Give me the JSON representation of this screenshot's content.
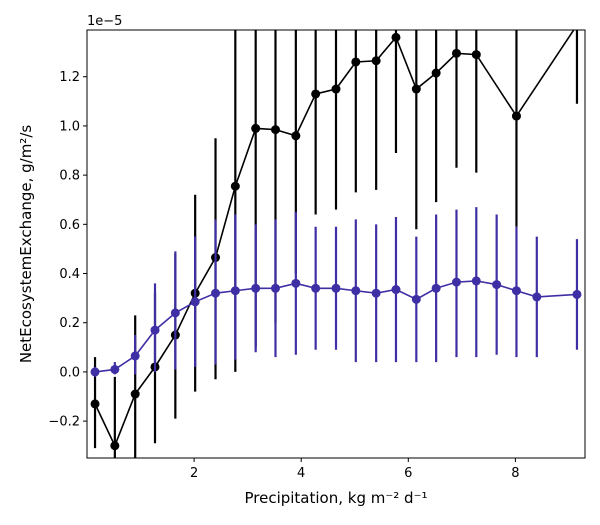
{
  "chart_data": {
    "type": "line",
    "title": "",
    "xlabel": "Precipitation,  kg m⁻² d⁻¹",
    "ylabel": "NetEcosystemExchange,  g/m²/s",
    "y_scale_label": "1e−5",
    "xlim": [
      0.0,
      9.3
    ],
    "ylim": [
      -0.35,
      1.39
    ],
    "x_ticks": [
      2,
      4,
      6,
      8
    ],
    "x_tick_labels": [
      "2",
      "4",
      "6",
      "8"
    ],
    "y_ticks": [
      -0.2,
      0.0,
      0.2,
      0.4,
      0.6,
      0.8,
      1.0,
      1.2
    ],
    "y_tick_labels": [
      "−0.2",
      "0.0",
      "0.2",
      "0.4",
      "0.6",
      "0.8",
      "1.0",
      "1.2"
    ],
    "grid": false,
    "legend": false,
    "series": [
      {
        "color": "#000000",
        "marker": "circle",
        "x": [
          0.15,
          0.52,
          0.9,
          1.27,
          1.65,
          2.02,
          2.4,
          2.77,
          3.15,
          3.52,
          3.9,
          4.27,
          4.65,
          5.02,
          5.4,
          5.77,
          6.15,
          6.52,
          6.9,
          7.27,
          8.02,
          9.15
        ],
        "y": [
          -0.13,
          -0.3,
          -0.09,
          0.02,
          0.15,
          0.32,
          0.465,
          0.755,
          0.99,
          0.985,
          0.96,
          1.13,
          1.15,
          1.26,
          1.265,
          1.36,
          1.15,
          1.215,
          1.295,
          1.29,
          1.04,
          1.41
        ],
        "err_low": [
          -0.31,
          -0.45,
          -0.45,
          -0.29,
          -0.19,
          -0.08,
          -0.03,
          0.0,
          0.1,
          0.2,
          0.4,
          0.64,
          0.66,
          0.73,
          0.74,
          0.89,
          0.58,
          0.69,
          0.83,
          0.81,
          0.59,
          1.09
        ],
        "err_high": [
          0.06,
          -0.02,
          0.23,
          0.32,
          0.48,
          0.72,
          0.95,
          1.4,
          1.4,
          1.4,
          1.4,
          1.4,
          1.4,
          1.4,
          1.4,
          1.4,
          1.4,
          1.4,
          1.4,
          1.4,
          1.4,
          1.4
        ]
      },
      {
        "color": "#3f2fa5",
        "marker": "circle",
        "x": [
          0.15,
          0.52,
          0.9,
          1.27,
          1.65,
          2.02,
          2.4,
          2.77,
          3.15,
          3.52,
          3.9,
          4.27,
          4.65,
          5.02,
          5.4,
          5.77,
          6.15,
          6.52,
          6.9,
          7.27,
          7.65,
          8.02,
          8.4,
          9.15
        ],
        "y": [
          0.0,
          0.01,
          0.065,
          0.17,
          0.24,
          0.285,
          0.32,
          0.33,
          0.34,
          0.34,
          0.36,
          0.34,
          0.34,
          0.33,
          0.32,
          0.335,
          0.295,
          0.34,
          0.365,
          0.37,
          0.355,
          0.33,
          0.305,
          0.315
        ],
        "err_low": [
          -0.02,
          -0.01,
          -0.01,
          0.0,
          0.01,
          0.02,
          0.03,
          0.05,
          0.08,
          0.06,
          0.07,
          0.09,
          0.09,
          0.04,
          0.04,
          0.04,
          0.04,
          0.04,
          0.06,
          0.06,
          0.07,
          0.06,
          0.06,
          0.09
        ],
        "err_high": [
          0.02,
          0.04,
          0.15,
          0.36,
          0.49,
          0.55,
          0.62,
          0.64,
          0.6,
          0.62,
          0.65,
          0.59,
          0.59,
          0.62,
          0.6,
          0.63,
          0.55,
          0.64,
          0.66,
          0.67,
          0.64,
          0.59,
          0.55,
          0.54
        ]
      }
    ]
  }
}
